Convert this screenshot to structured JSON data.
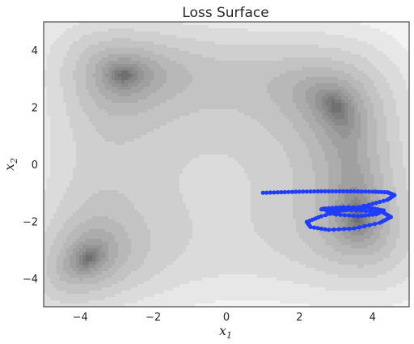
{
  "chart_data": {
    "type": "contour",
    "title": "Loss Surface",
    "xlabel": "x",
    "xlabel_sub": "1",
    "ylabel": "x",
    "ylabel_sub": "2",
    "xlim": [
      -5,
      5
    ],
    "ylim": [
      -5,
      5
    ],
    "xticks": [
      -4,
      -2,
      0,
      2,
      4
    ],
    "yticks": [
      -4,
      -2,
      0,
      2,
      4
    ],
    "xtick_labels": [
      "−4",
      "−2",
      "0",
      "2",
      "4"
    ],
    "ytick_labels": [
      "−4",
      "−2",
      "0",
      "2",
      "4"
    ],
    "grid": false,
    "colormap": "greys",
    "minima": [
      {
        "x": -2.81,
        "y": 3.13
      },
      {
        "x": 3.0,
        "y": 2.0
      },
      {
        "x": -3.78,
        "y": -3.28
      },
      {
        "x": 3.58,
        "y": -1.85
      }
    ],
    "local_maximum": {
      "x": -0.27,
      "y": -0.92
    },
    "trajectory": {
      "color": "#1f3cff",
      "start": {
        "x": 1.0,
        "y": -1.0
      },
      "x": [
        1.0,
        1.5,
        2.0,
        2.5,
        3.0,
        3.5,
        4.0,
        4.4,
        4.6,
        4.4,
        3.9,
        3.2,
        2.6,
        2.2,
        2.3,
        2.8,
        3.5,
        4.2,
        4.5,
        4.3,
        3.7,
        3.0,
        2.6,
        2.7,
        3.2,
        3.9,
        4.3,
        4.1,
        3.6,
        3.0,
        2.7
      ],
      "y": [
        -1.0,
        -0.98,
        -0.96,
        -0.95,
        -0.95,
        -0.95,
        -0.96,
        -0.98,
        -1.08,
        -1.25,
        -1.42,
        -1.62,
        -1.82,
        -2.02,
        -2.2,
        -2.3,
        -2.25,
        -2.05,
        -1.85,
        -1.7,
        -1.62,
        -1.6,
        -1.58,
        -1.55,
        -1.5,
        -1.52,
        -1.62,
        -1.75,
        -1.82,
        -1.76,
        -1.62
      ]
    }
  }
}
